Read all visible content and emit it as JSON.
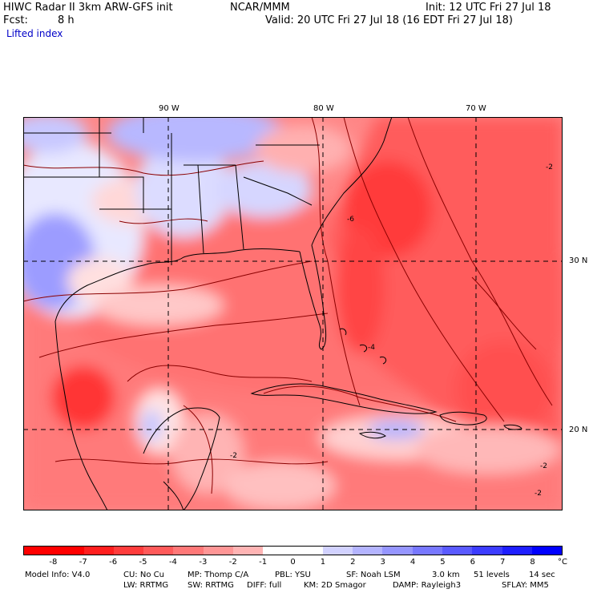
{
  "header": {
    "model": "HIWC Radar II 3km ARW-GFS init",
    "org": "NCAR/MMM",
    "init": "Init: 12 UTC Fri 27 Jul 18",
    "fcst_label": "Fcst:",
    "fcst_value": "8 h",
    "valid": "Valid: 20 UTC Fri 27 Jul 18 (16 EDT Fri 27 Jul 18)",
    "field": "Lifted index"
  },
  "map": {
    "lon_labels": [
      "90 W",
      "80 W",
      "70 W"
    ],
    "lat_labels": [
      "30 N",
      "20 N"
    ],
    "contour_labels": [
      "-2",
      "-6",
      "-4",
      "-2",
      "-2",
      "-2"
    ]
  },
  "colorbar": {
    "unit": "°C",
    "ticks": [
      "-8",
      "-7",
      "-6",
      "-5",
      "-4",
      "-3",
      "-2",
      "-1",
      "0",
      "1",
      "2",
      "3",
      "4",
      "5",
      "6",
      "7",
      "8"
    ],
    "colors": [
      "#ff0000",
      "#ff1e1e",
      "#ff3c3c",
      "#ff5a5a",
      "#ff7878",
      "#ff9696",
      "#ffb4b4",
      "#ffd2d2",
      "#ffffff",
      "#d2d2ff",
      "#b4b4ff",
      "#9696ff",
      "#7878ff",
      "#5a5aff",
      "#3c3cff",
      "#1e1eff",
      "#0000ff"
    ]
  },
  "footer": {
    "model_info": "Model Info: V4.0",
    "cu": "CU: No Cu",
    "mp": "MP: Thomp C/A",
    "pbl": "PBL: YSU",
    "sf": "SF: Noah LSM",
    "res": "3.0 km",
    "levels": "51 levels",
    "dt": "14 sec",
    "lw": "LW: RRTMG",
    "sw": "SW: RRTMG",
    "diff": "DIFF: full",
    "km": "KM: 2D Smagor",
    "damp": "DAMP: Rayleigh3",
    "sflay": "SFLAY: MM5"
  }
}
